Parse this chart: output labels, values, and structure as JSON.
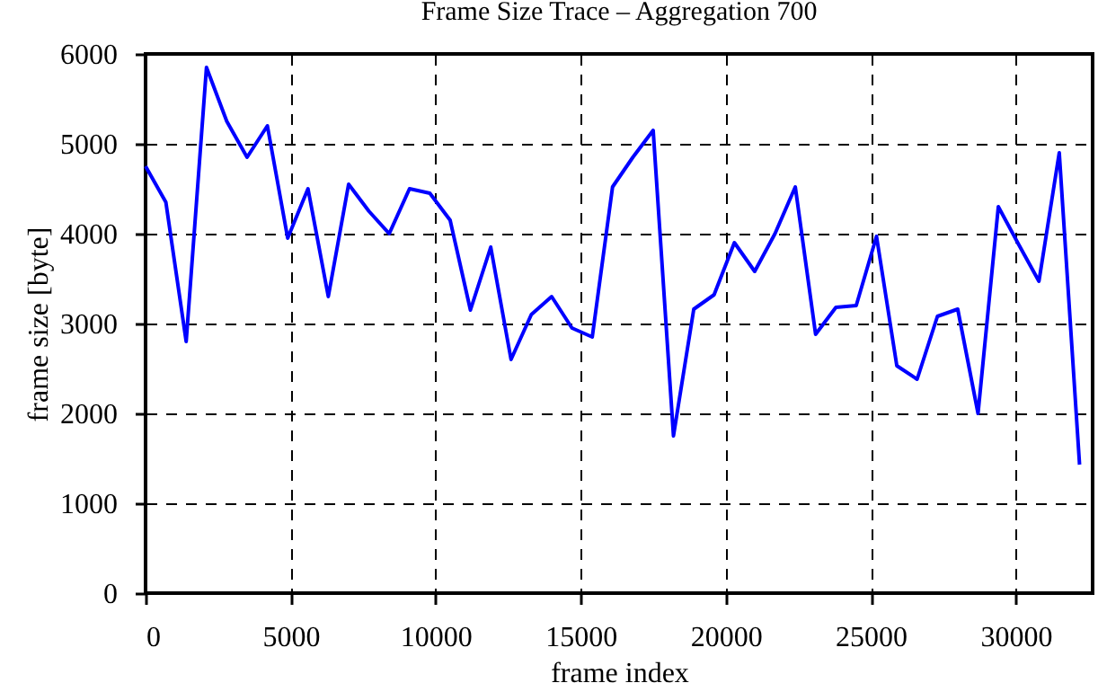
{
  "chart_data": {
    "type": "line",
    "title": "Frame Size Trace – Aggregation 700",
    "xlabel": "frame index",
    "ylabel": "frame size [byte]",
    "x": [
      0,
      700,
      1400,
      2100,
      2800,
      3500,
      4200,
      4900,
      5600,
      6300,
      7000,
      7700,
      8400,
      9100,
      9800,
      10500,
      11200,
      11900,
      12600,
      13300,
      14000,
      14700,
      15400,
      16100,
      16800,
      17500,
      18200,
      18900,
      19600,
      20300,
      21000,
      21700,
      22400,
      23100,
      23800,
      24500,
      25200,
      25900,
      26600,
      27300,
      28000,
      28700,
      29400,
      30100,
      30800,
      31500,
      32200
    ],
    "series": [
      {
        "color": "#0000ff",
        "values": [
          4750,
          4350,
          2800,
          5850,
          5250,
          4850,
          5200,
          3950,
          4500,
          3300,
          4550,
          4250,
          4000,
          4500,
          4450,
          4150,
          3150,
          3850,
          2600,
          3100,
          3300,
          2950,
          2850,
          4520,
          4850,
          5150,
          1750,
          3160,
          3320,
          3900,
          3580,
          4000,
          4520,
          2880,
          3180,
          3200,
          3970,
          2530,
          2380,
          3080,
          3160,
          2000,
          4300,
          3880,
          3470,
          4900,
          1430
        ]
      }
    ],
    "xlim": [
      0,
      32650
    ],
    "xticks": [
      0,
      5000,
      10000,
      15000,
      20000,
      25000,
      30000
    ],
    "ylim": [
      0,
      6000
    ],
    "yticks": [
      0,
      1000,
      2000,
      3000,
      4000,
      5000,
      6000
    ],
    "grid": true,
    "legend": false,
    "marker": "none",
    "line_style": "solid"
  }
}
